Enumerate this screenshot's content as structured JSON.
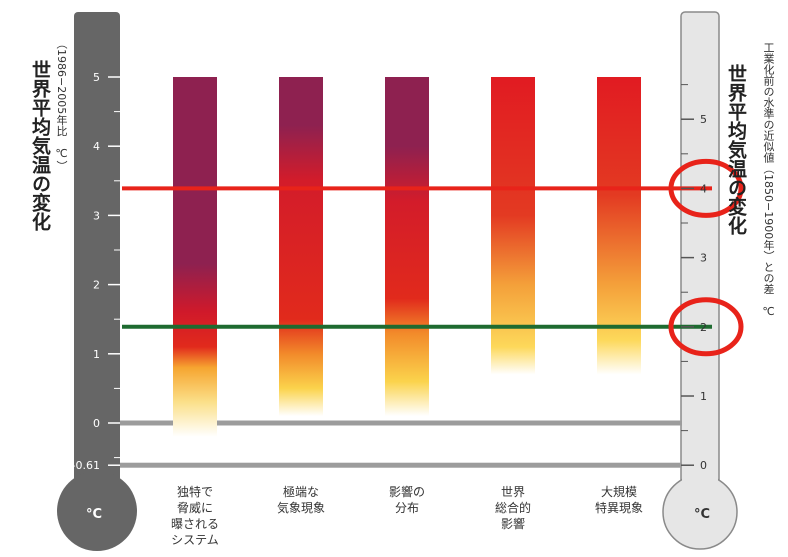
{
  "chart_data": {
    "type": "bar",
    "categories": [
      "独特で\n脅威に\n曝される\nシステム",
      "極端な\n気象現象",
      "影響の\n分布",
      "世界\n総合的\n影響",
      "大規模\n特異現象"
    ],
    "left_axis": {
      "label": "世界平均気温の変化",
      "sublabel": "（1986−2005年比　℃）",
      "ticks": [
        5,
        4,
        3,
        2,
        1,
        0,
        -0.61
      ],
      "tick_labels": [
        "5",
        "4",
        "3",
        "2",
        "1",
        "0",
        "-0.61"
      ],
      "unit": "°C"
    },
    "right_axis": {
      "label": "世界平均気温の変化",
      "sublabel": "工業化前の水準の近似値（1850−1900年）との差　℃",
      "ticks": [
        5,
        4,
        3,
        2,
        1,
        0
      ],
      "tick_labels": [
        "5",
        "4",
        "3",
        "2",
        "1",
        "0"
      ],
      "unit": "°C",
      "offset_vs_left": 0.61
    },
    "ylim": [
      -0.61,
      5
    ],
    "bars": [
      {
        "category": "独特で脅威に曝されるシステム",
        "bottom": -0.2,
        "top": 5,
        "stops": [
          {
            "t": -0.2,
            "c": "#ffffff"
          },
          {
            "t": 0.3,
            "c": "#fbe08a"
          },
          {
            "t": 0.8,
            "c": "#f6a530"
          },
          {
            "t": 1.1,
            "c": "#e12a1c"
          },
          {
            "t": 1.6,
            "c": "#d0192a"
          },
          {
            "t": 2.3,
            "c": "#8e2150"
          },
          {
            "t": 5,
            "c": "#8e2150"
          }
        ]
      },
      {
        "category": "極端な気象現象",
        "bottom": 0.1,
        "top": 5,
        "stops": [
          {
            "t": 0.1,
            "c": "#ffffff"
          },
          {
            "t": 0.5,
            "c": "#fbd34c"
          },
          {
            "t": 1.0,
            "c": "#f28a2a"
          },
          {
            "t": 1.5,
            "c": "#e12a1c"
          },
          {
            "t": 3.5,
            "c": "#d31c2a"
          },
          {
            "t": 4.3,
            "c": "#8e2150"
          },
          {
            "t": 5,
            "c": "#8e2150"
          }
        ]
      },
      {
        "category": "影響の分布",
        "bottom": 0.1,
        "top": 5,
        "stops": [
          {
            "t": 0.1,
            "c": "#ffffff"
          },
          {
            "t": 0.6,
            "c": "#fbd34c"
          },
          {
            "t": 1.3,
            "c": "#f28a2a"
          },
          {
            "t": 1.8,
            "c": "#e12a1c"
          },
          {
            "t": 3.2,
            "c": "#d31c2a"
          },
          {
            "t": 4.0,
            "c": "#8e2150"
          },
          {
            "t": 5,
            "c": "#8e2150"
          }
        ]
      },
      {
        "category": "世界総合的影響",
        "bottom": 0.7,
        "top": 5,
        "stops": [
          {
            "t": 0.7,
            "c": "#ffffff"
          },
          {
            "t": 1.1,
            "c": "#fdd85a"
          },
          {
            "t": 2.0,
            "c": "#f4a03a"
          },
          {
            "t": 3.0,
            "c": "#e33a22"
          },
          {
            "t": 5,
            "c": "#e11b22"
          }
        ]
      },
      {
        "category": "大規模特異現象",
        "bottom": 0.7,
        "top": 5,
        "stops": [
          {
            "t": 0.7,
            "c": "#ffffff"
          },
          {
            "t": 1.2,
            "c": "#fdd85a"
          },
          {
            "t": 2.0,
            "c": "#f4a03a"
          },
          {
            "t": 3.3,
            "c": "#e33a22"
          },
          {
            "t": 5,
            "c": "#e11b22"
          }
        ]
      }
    ],
    "reference_lines": [
      {
        "name": "red-line",
        "right_axis_value": 4,
        "color": "#e8231a"
      },
      {
        "name": "green-line",
        "right_axis_value": 2,
        "color": "#1e6b30"
      }
    ],
    "highlight_circles": [
      {
        "right_axis_value": 4,
        "color": "#e8231a"
      },
      {
        "right_axis_value": 2,
        "color": "#e8231a"
      }
    ],
    "colors": {
      "left_thermo": "#666666",
      "right_thermo": "#e6e6e6",
      "baseline": "#9c9c9c"
    }
  }
}
